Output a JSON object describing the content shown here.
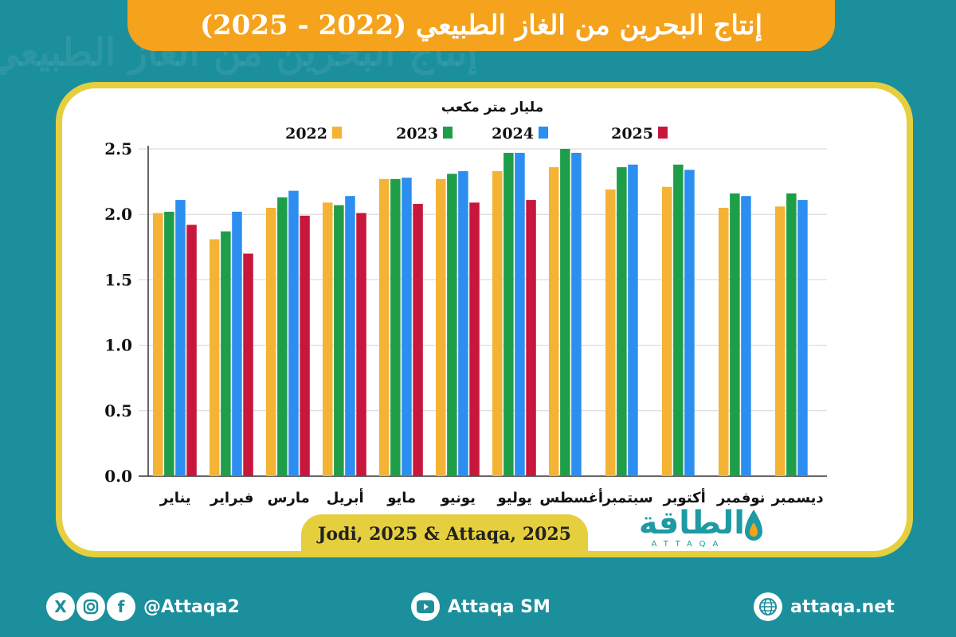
{
  "title": "إنتاج البحرين من الغاز الطبيعي (2022 - 2025)",
  "source": "Jodi, 2025 & Attaqa, 2025",
  "logo": {
    "arabic": "الطاقة",
    "latin": "ATTAQA"
  },
  "footer": {
    "social_handle": "@Attaqa2",
    "youtube": "Attaqa SM",
    "website": "attaqa.net",
    "icons": [
      "x-icon",
      "instagram-icon",
      "facebook-icon",
      "youtube-icon",
      "globe-icon"
    ]
  },
  "colors": {
    "background": "#1b8f9c",
    "title_bar": "#f5a21c",
    "card_border": "#e5cf3e",
    "series_2022": "#f5b335",
    "series_2023": "#1f9e4a",
    "series_2024": "#2b8ef0",
    "series_2025": "#c8173c"
  },
  "chart_data": {
    "type": "bar",
    "unit_label": "مليار متر مكعب",
    "categories": [
      "يناير",
      "فبراير",
      "مارس",
      "أبريل",
      "مايو",
      "يونيو",
      "يوليو",
      "أغسطس",
      "سبتمبر",
      "أكتوبر",
      "نوفمبر",
      "ديسمبر"
    ],
    "series": [
      {
        "name": "2022",
        "values": [
          2.01,
          1.81,
          2.05,
          2.09,
          2.27,
          2.27,
          2.33,
          2.36,
          2.19,
          2.21,
          2.05,
          2.06
        ]
      },
      {
        "name": "2023",
        "values": [
          2.02,
          1.87,
          2.13,
          2.07,
          2.27,
          2.31,
          2.47,
          2.5,
          2.36,
          2.38,
          2.16,
          2.16
        ]
      },
      {
        "name": "2024",
        "values": [
          2.11,
          2.02,
          2.18,
          2.14,
          2.28,
          2.33,
          2.47,
          2.47,
          2.38,
          2.34,
          2.14,
          2.11
        ]
      },
      {
        "name": "2025",
        "values": [
          1.92,
          1.7,
          1.99,
          2.01,
          2.08,
          2.09,
          2.11,
          null,
          null,
          null,
          null,
          null
        ]
      }
    ],
    "yticks": [
      "0.0",
      "0.5",
      "1.0",
      "1.5",
      "2.0",
      "2.5"
    ],
    "ylim": [
      0,
      2.5
    ],
    "grid": true,
    "legend_position": "top"
  }
}
